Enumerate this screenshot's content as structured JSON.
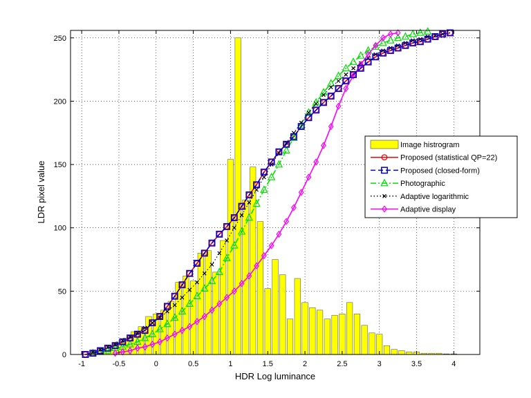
{
  "chart_data": {
    "type": "line",
    "xlabel": "HDR Log luminance",
    "ylabel": "LDR pixel value",
    "xlim": [
      -1.15,
      4.35
    ],
    "ylim": [
      0,
      255
    ],
    "xticks": [
      "-1",
      "-0.5",
      "0",
      "0.5",
      "1",
      "1.5",
      "2",
      "2.5",
      "3",
      "3.5",
      "4"
    ],
    "yticks": [
      "0",
      "50",
      "100",
      "150",
      "200",
      "250"
    ],
    "grid": true,
    "legend_position": "right",
    "histogram": {
      "name": "Image histrogram",
      "color": "#ffff00",
      "bin_width": 0.1,
      "centers": [
        -0.8,
        -0.7,
        -0.6,
        -0.5,
        -0.4,
        -0.3,
        -0.2,
        -0.1,
        0.0,
        0.1,
        0.2,
        0.3,
        0.4,
        0.5,
        0.6,
        0.7,
        0.8,
        0.9,
        1.0,
        1.1,
        1.2,
        1.3,
        1.4,
        1.5,
        1.6,
        1.7,
        1.8,
        1.9,
        2.0,
        2.1,
        2.2,
        2.3,
        2.4,
        2.5,
        2.6,
        2.7,
        2.8,
        2.9,
        3.0,
        3.1,
        3.2,
        3.3,
        3.4,
        3.5,
        3.6,
        3.7,
        3.8,
        3.9,
        4.0
      ],
      "values": [
        1,
        3,
        7,
        10,
        13,
        18,
        22,
        30,
        32,
        35,
        42,
        57,
        62,
        58,
        80,
        82,
        65,
        90,
        154,
        250,
        122,
        148,
        105,
        52,
        75,
        63,
        28,
        60,
        41,
        37,
        35,
        28,
        31,
        32,
        41,
        32,
        23,
        17,
        16,
        7,
        4,
        3,
        2,
        2,
        1,
        1,
        1,
        0.5,
        0.5
      ]
    },
    "series": [
      {
        "name": "Proposed (statistical QP=22)",
        "color": "#ff0000",
        "style": "solid",
        "marker": "circle",
        "x": [
          -0.95,
          -0.85,
          -0.75,
          -0.65,
          -0.55,
          -0.45,
          -0.35,
          -0.25,
          -0.15,
          -0.05,
          0.05,
          0.15,
          0.25,
          0.35,
          0.45,
          0.55,
          0.65,
          0.75,
          0.85,
          0.95,
          1.05,
          1.15,
          1.25,
          1.35,
          1.45,
          1.55,
          1.65,
          1.75,
          1.85,
          1.95,
          2.05,
          2.15,
          2.25,
          2.35,
          2.45,
          2.55,
          2.65,
          2.75,
          2.85,
          2.95,
          3.05,
          3.15,
          3.25,
          3.35,
          3.45,
          3.55,
          3.65,
          3.75,
          3.85,
          3.95
        ],
        "y": [
          0,
          1,
          3,
          5,
          7,
          10,
          13,
          16,
          19,
          25,
          30,
          38,
          46,
          55,
          64,
          72,
          80,
          88,
          95,
          101,
          108,
          117,
          126,
          134,
          144,
          152,
          160,
          166,
          172,
          180,
          187,
          193,
          199,
          204,
          210,
          216,
          221,
          226,
          231,
          235,
          238,
          240,
          242,
          244,
          246,
          247,
          249,
          251,
          253,
          254
        ]
      },
      {
        "name": "Proposed (closed-form)",
        "color": "#0000cc",
        "style": "dashed",
        "marker": "square",
        "x": [
          -0.95,
          -0.85,
          -0.75,
          -0.65,
          -0.55,
          -0.45,
          -0.35,
          -0.25,
          -0.15,
          -0.05,
          0.05,
          0.15,
          0.25,
          0.35,
          0.45,
          0.55,
          0.65,
          0.75,
          0.85,
          0.95,
          1.05,
          1.15,
          1.25,
          1.35,
          1.45,
          1.55,
          1.65,
          1.75,
          1.85,
          1.95,
          2.05,
          2.15,
          2.25,
          2.35,
          2.45,
          2.55,
          2.65,
          2.75,
          2.85,
          2.95,
          3.05,
          3.15,
          3.25,
          3.35,
          3.45,
          3.55,
          3.65,
          3.75,
          3.85,
          3.95
        ],
        "y": [
          0,
          1,
          3,
          5,
          7,
          10,
          13,
          16,
          19,
          25,
          30,
          38,
          46,
          55,
          64,
          72,
          80,
          88,
          95,
          101,
          108,
          117,
          126,
          134,
          144,
          152,
          160,
          166,
          172,
          180,
          187,
          193,
          199,
          204,
          210,
          216,
          221,
          226,
          231,
          235,
          238,
          240,
          242,
          244,
          246,
          247,
          249,
          251,
          253,
          254
        ]
      },
      {
        "name": "Photographic",
        "color": "#00e000",
        "style": "dashdot",
        "marker": "triangle",
        "x": [
          -0.85,
          -0.75,
          -0.65,
          -0.55,
          -0.45,
          -0.35,
          -0.25,
          -0.15,
          -0.05,
          0.05,
          0.15,
          0.25,
          0.35,
          0.45,
          0.55,
          0.65,
          0.75,
          0.85,
          0.95,
          1.05,
          1.15,
          1.25,
          1.35,
          1.45,
          1.55,
          1.65,
          1.75,
          1.85,
          1.95,
          2.05,
          2.15,
          2.25,
          2.35,
          2.45,
          2.55,
          2.65,
          2.75,
          2.85,
          2.95,
          3.05,
          3.15,
          3.25,
          3.35,
          3.45,
          3.55,
          3.65
        ],
        "y": [
          1,
          2,
          3,
          5,
          6,
          8,
          10,
          13,
          16,
          20,
          24,
          29,
          34,
          40,
          46,
          52,
          58,
          65,
          76,
          86,
          97,
          108,
          119,
          130,
          140,
          150,
          161,
          171,
          181,
          191,
          199,
          207,
          214,
          220,
          226,
          231,
          236,
          240,
          243,
          246,
          248,
          250,
          251,
          253,
          254,
          255
        ]
      },
      {
        "name": "Adaptive logarithmic",
        "color": "#000000",
        "style": "dotted",
        "marker": "x",
        "x": [
          -0.85,
          -0.75,
          -0.65,
          -0.55,
          -0.45,
          -0.35,
          -0.25,
          -0.15,
          -0.05,
          0.05,
          0.15,
          0.25,
          0.35,
          0.45,
          0.55,
          0.65,
          0.75,
          0.85,
          0.95,
          1.05,
          1.15,
          1.25,
          1.35,
          1.45,
          1.55,
          1.65,
          1.75,
          1.85,
          1.95,
          2.05,
          2.15,
          2.25,
          2.35,
          2.45,
          2.55,
          2.65,
          2.75,
          2.85,
          2.95,
          3.05,
          3.15,
          3.25,
          3.35,
          3.45,
          3.55,
          3.65,
          3.75,
          3.85
        ],
        "y": [
          2,
          4,
          6,
          8,
          11,
          14,
          17,
          21,
          25,
          29,
          34,
          39,
          45,
          51,
          57,
          64,
          71,
          80,
          90,
          100,
          110,
          120,
          130,
          140,
          150,
          159,
          167,
          175,
          183,
          191,
          198,
          205,
          211,
          216,
          221,
          226,
          230,
          234,
          237,
          240,
          242,
          244,
          246,
          248,
          249,
          251,
          252,
          253
        ]
      },
      {
        "name": "Adaptive display",
        "color": "#ff00ff",
        "style": "solid",
        "marker": "diamond",
        "x": [
          -0.55,
          -0.45,
          -0.35,
          -0.25,
          -0.15,
          -0.05,
          0.05,
          0.15,
          0.25,
          0.35,
          0.45,
          0.55,
          0.65,
          0.75,
          0.85,
          0.95,
          1.05,
          1.15,
          1.25,
          1.35,
          1.45,
          1.55,
          1.65,
          1.75,
          1.85,
          1.95,
          2.05,
          2.15,
          2.25,
          2.35,
          2.45,
          2.55,
          2.65,
          2.75,
          2.85,
          2.95,
          3.05,
          3.15,
          3.25
        ],
        "y": [
          1,
          2,
          3,
          5,
          6,
          8,
          10,
          13,
          16,
          19,
          22,
          26,
          30,
          35,
          40,
          45,
          50,
          56,
          62,
          70,
          78,
          86,
          95,
          105,
          116,
          128,
          140,
          152,
          165,
          180,
          196,
          210,
          220,
          229,
          237,
          244,
          250,
          253,
          254
        ]
      }
    ]
  }
}
